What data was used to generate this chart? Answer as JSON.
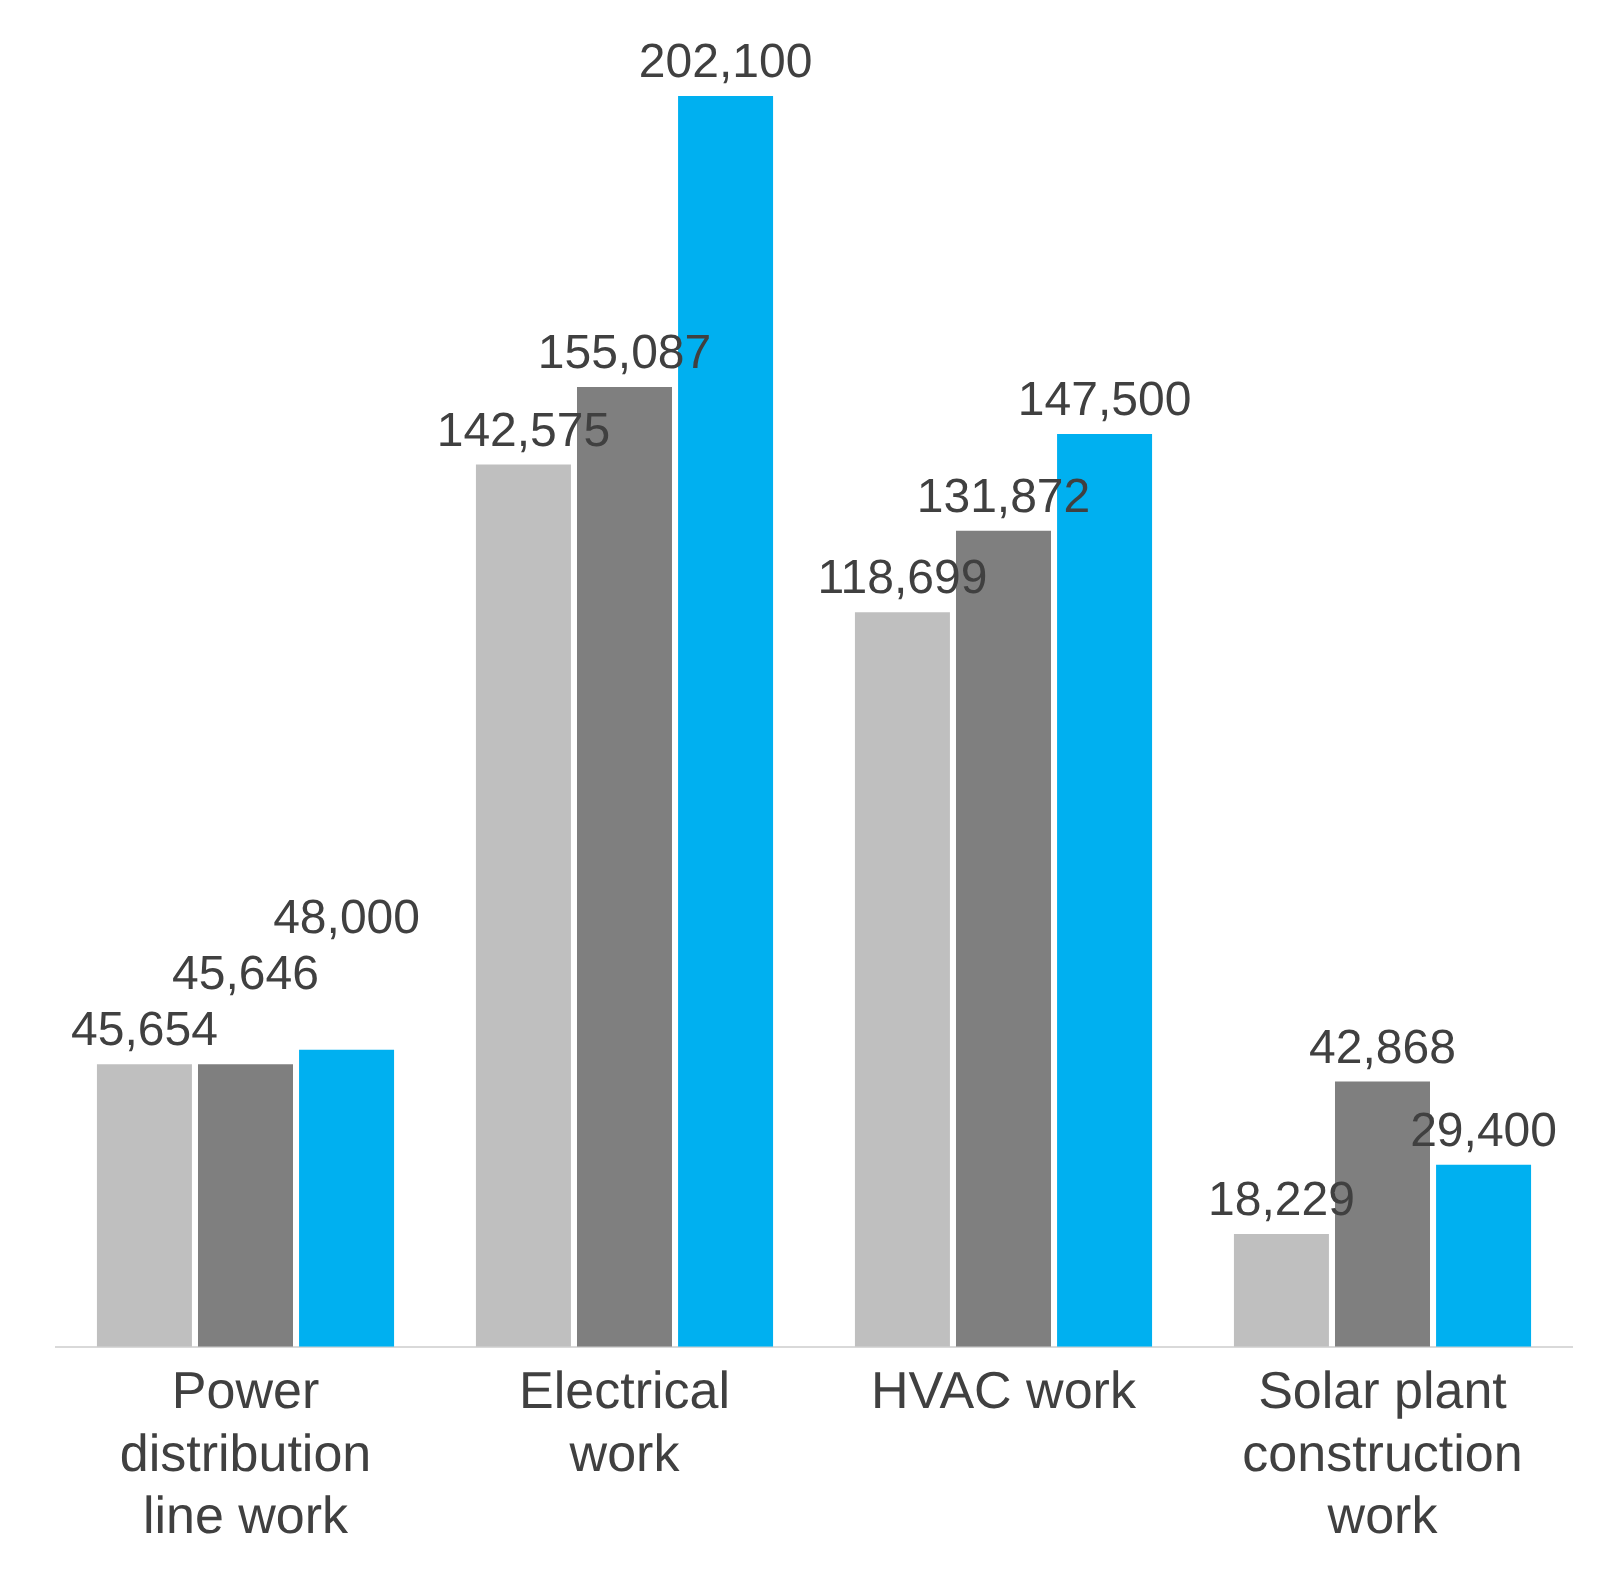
{
  "chart_data": {
    "type": "bar",
    "categories": [
      "Power distribution line work",
      "Electrical work",
      "HVAC work",
      "Solar plant construction work"
    ],
    "series": [
      {
        "color": "#bfbfbf",
        "values": [
          45654,
          142575,
          118699,
          18229
        ],
        "value_labels": [
          "45,654",
          "142,575",
          "118,699",
          "18,229"
        ]
      },
      {
        "color": "#7f7f7f",
        "values": [
          45646,
          155087,
          131872,
          42868
        ],
        "value_labels": [
          "45,646",
          "155,087",
          "131,872",
          "42,868"
        ]
      },
      {
        "color": "#00b0f0",
        "values": [
          48000,
          202100,
          147500,
          29400
        ],
        "value_labels": [
          "48,000",
          "202,100",
          "147,500",
          "29,400"
        ]
      }
    ],
    "grid": false,
    "legend": false
  }
}
